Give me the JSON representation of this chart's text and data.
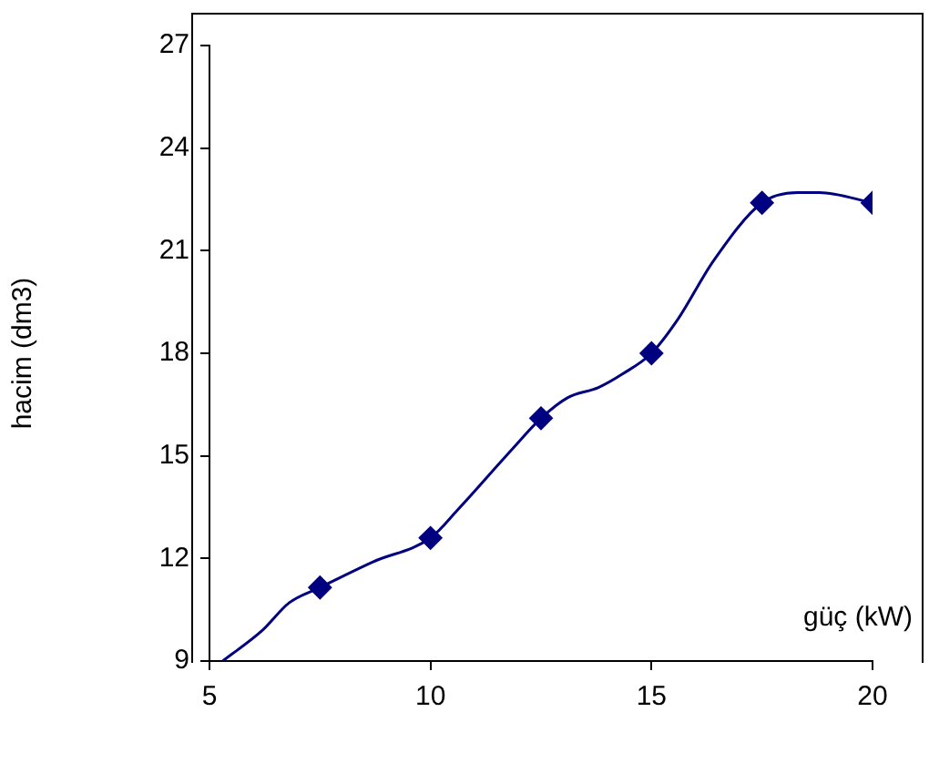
{
  "chart_data": {
    "type": "line",
    "xlabel": "güç (kW)",
    "ylabel": "hacim (dm3)",
    "xlim": [
      5,
      20
    ],
    "xticks": [
      5,
      10,
      15,
      20
    ],
    "ylim": [
      9,
      27
    ],
    "yticks": [
      9,
      12,
      15,
      18,
      21,
      24,
      27
    ],
    "grid": false,
    "legend": false,
    "series": [
      {
        "color": "#000080",
        "marker": "none",
        "x": [
          5.3,
          6.2,
          6.8,
          7.5,
          8.7,
          10,
          10.6,
          11.85,
          12.5,
          13.1,
          13.8,
          14.35,
          15,
          15.6,
          16.4,
          17.5,
          18.3,
          18.8,
          20
        ],
        "values": [
          9.0,
          9.9,
          10.7,
          11.15,
          11.9,
          12.6,
          13.4,
          15.2,
          16.1,
          16.7,
          17.0,
          17.4,
          18.0,
          19.0,
          20.7,
          22.4,
          22.7,
          22.7,
          22.4
        ]
      },
      {
        "type": "scatter",
        "color": "#000080",
        "marker": "diamond",
        "x": [
          7.5,
          10,
          12.5,
          15,
          17.5,
          20
        ],
        "values": [
          11.15,
          12.6,
          16.1,
          18.0,
          22.4,
          22.4
        ]
      }
    ]
  }
}
